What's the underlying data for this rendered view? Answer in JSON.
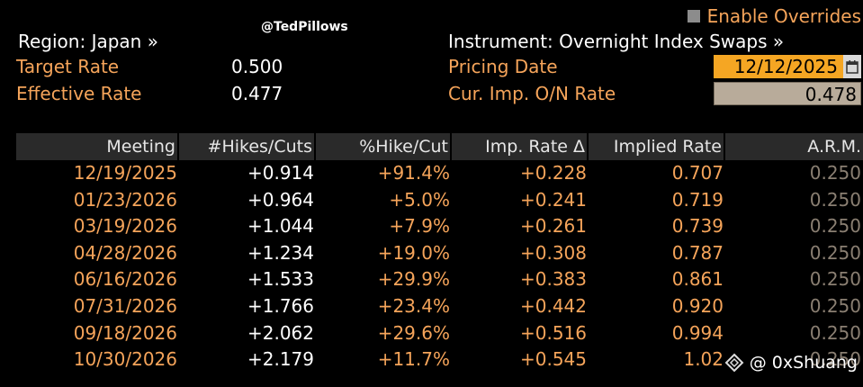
{
  "overrides": {
    "label": "Enable Overrides",
    "checked": false
  },
  "watermark_top": "@TedPillows",
  "region": {
    "label": "Region: Japan »"
  },
  "instrument": {
    "label": "Instrument: Overnight Index Swaps »"
  },
  "target_rate": {
    "label": "Target Rate",
    "value": "0.500"
  },
  "effective_rate": {
    "label": "Effective Rate",
    "value": "0.477"
  },
  "pricing_date": {
    "label": "Pricing Date",
    "value": "12/12/2025"
  },
  "cur_imp_rate": {
    "label": "Cur. Imp. O/N Rate",
    "value": "0.478"
  },
  "table": {
    "headers": [
      "Meeting",
      "#Hikes/Cuts",
      "%Hike/Cut",
      "Imp. Rate Δ",
      "Implied Rate",
      "A.R.M."
    ],
    "rows": [
      [
        "12/19/2025",
        "+0.914",
        "+91.4%",
        "+0.228",
        "0.707",
        "0.250"
      ],
      [
        "01/23/2026",
        "+0.964",
        "+5.0%",
        "+0.241",
        "0.719",
        "0.250"
      ],
      [
        "03/19/2026",
        "+1.044",
        "+7.9%",
        "+0.261",
        "0.739",
        "0.250"
      ],
      [
        "04/28/2026",
        "+1.234",
        "+19.0%",
        "+0.308",
        "0.787",
        "0.250"
      ],
      [
        "06/16/2026",
        "+1.533",
        "+29.9%",
        "+0.383",
        "0.861",
        "0.250"
      ],
      [
        "07/31/2026",
        "+1.766",
        "+23.4%",
        "+0.442",
        "0.920",
        "0.250"
      ],
      [
        "09/18/2026",
        "+2.062",
        "+29.6%",
        "+0.516",
        "0.994",
        "0.250"
      ],
      [
        "10/30/2026",
        "+2.179",
        "+11.7%",
        "+0.545",
        "1.02",
        "0.250"
      ]
    ]
  },
  "watermark_bottom": "@ 0xShuang",
  "colors": {
    "orange": "#f5a45a",
    "date_bg": "#f5a623",
    "header_bg": "#2a2a2a",
    "arm_text": "#8a7f72"
  }
}
